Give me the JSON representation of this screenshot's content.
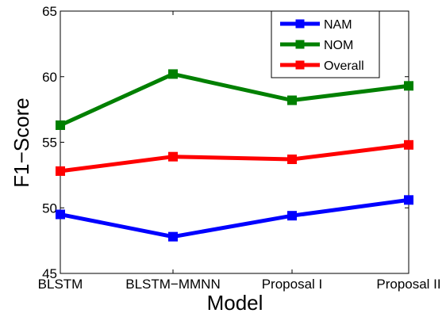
{
  "chart_data": {
    "type": "line",
    "xlabel": "Model",
    "ylabel": "F1−Score",
    "categories": [
      "BLSTM",
      "BLSTM−MMNN",
      "Proposal I",
      "Proposal II"
    ],
    "ylim": [
      45,
      65
    ],
    "yticks": [
      "45",
      "50",
      "55",
      "60",
      "65"
    ],
    "grid": false,
    "legend_position": "top-right",
    "series": [
      {
        "name": "NAM",
        "color": "#0000ff",
        "values": [
          49.5,
          47.8,
          49.4,
          50.6
        ]
      },
      {
        "name": "NOM",
        "color": "#008000",
        "values": [
          56.3,
          60.2,
          58.2,
          59.3
        ]
      },
      {
        "name": "Overall",
        "color": "#ff0000",
        "values": [
          52.8,
          53.9,
          53.7,
          54.8
        ]
      }
    ]
  }
}
